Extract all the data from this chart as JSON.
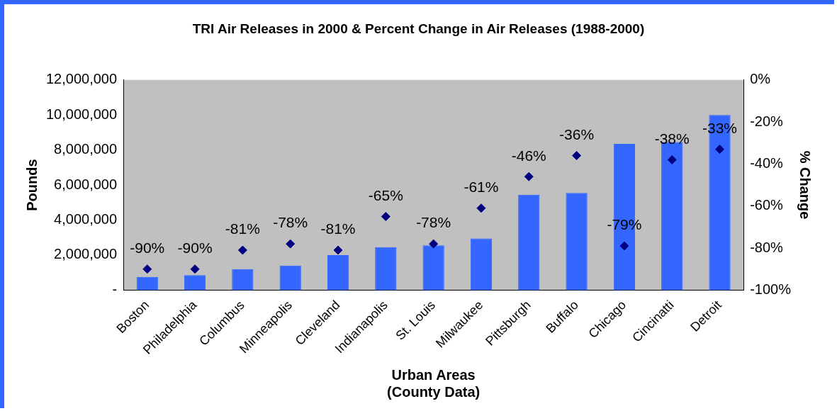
{
  "chart_data": {
    "type": "bar",
    "title": "TRI Air Releases in 2000 & Percent Change in Air Releases (1988-2000)",
    "xlabel": "Urban Areas\n(County Data)",
    "ylabel": "Pounds",
    "y2label": "% Change",
    "categories": [
      "Boston",
      "Philadelphia",
      "Columbus",
      "Minneapolis",
      "Cleveland",
      "Indianapolis",
      "St. Louis",
      "Milwaukee",
      "Pittsburgh",
      "Buffalo",
      "Chicago",
      "Cincinatti",
      "Detroit"
    ],
    "series": [
      {
        "color": "#3366ff",
        "values": [
          750000,
          850000,
          1200000,
          1400000,
          2000000,
          2450000,
          2550000,
          2950000,
          5450000,
          5550000,
          8350000,
          8450000,
          10000000
        ]
      },
      {
        "type": "scatter",
        "axis": "y2",
        "color": "#000080",
        "marker": "diamond",
        "values": [
          -90,
          -90,
          -81,
          -78,
          -81,
          -65,
          -78,
          -61,
          -46,
          -36,
          -79,
          -38,
          -33
        ],
        "value_labels": [
          "-90%",
          "-90%",
          "-81%",
          "-78%",
          "-81%",
          "-65%",
          "-78%",
          "-61%",
          "-46%",
          "-36%",
          "-79%",
          "-38%",
          "-33%"
        ]
      }
    ],
    "ylim": [
      0,
      12000000
    ],
    "yticks": [
      {
        "value": 0,
        "label": "-"
      },
      {
        "value": 2000000,
        "label": "2,000,000"
      },
      {
        "value": 4000000,
        "label": "4,000,000"
      },
      {
        "value": 6000000,
        "label": "6,000,000"
      },
      {
        "value": 8000000,
        "label": "8,000,000"
      },
      {
        "value": 10000000,
        "label": "10,000,000"
      },
      {
        "value": 12000000,
        "label": "12,000,000"
      }
    ],
    "y2lim": [
      -100,
      0
    ],
    "y2ticks": [
      {
        "value": -100,
        "label": "-100%"
      },
      {
        "value": -80,
        "label": "-80%"
      },
      {
        "value": -60,
        "label": "-60%"
      },
      {
        "value": -40,
        "label": "-40%"
      },
      {
        "value": -20,
        "label": "-20%"
      },
      {
        "value": 0,
        "label": "0%"
      }
    ],
    "grid": false,
    "legend": false
  }
}
